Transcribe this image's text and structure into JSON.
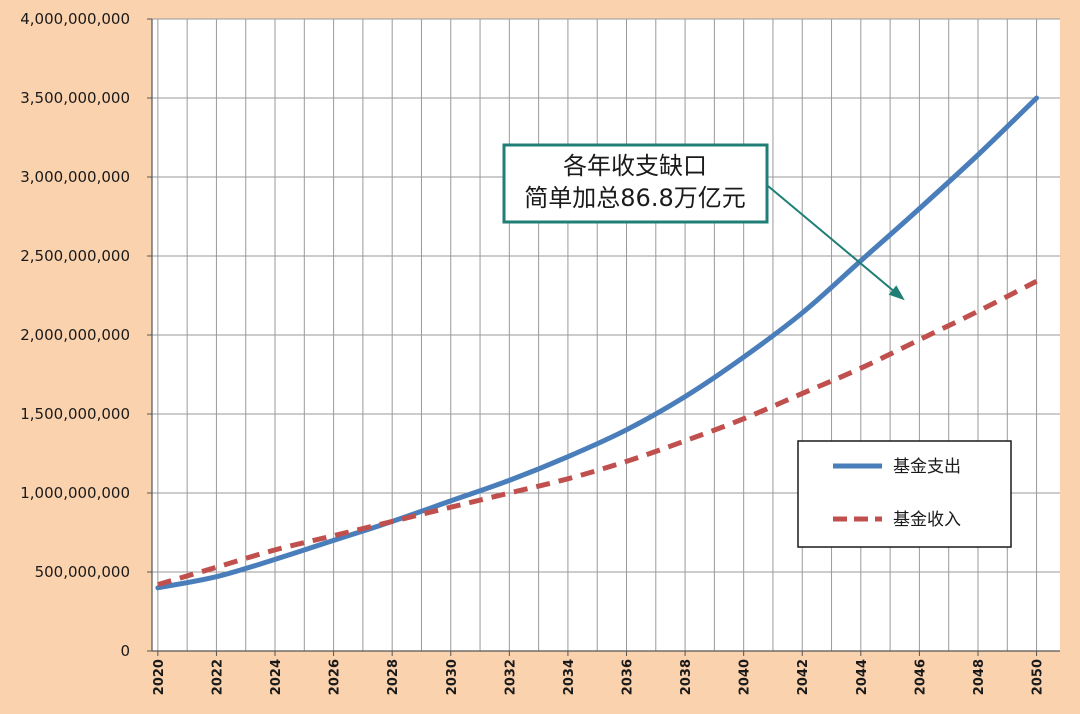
{
  "chart_data": {
    "type": "line",
    "title": "",
    "xlabel": "",
    "ylabel": "",
    "x": [
      2020,
      2022,
      2024,
      2026,
      2028,
      2030,
      2032,
      2034,
      2036,
      2038,
      2040,
      2042,
      2044,
      2046,
      2048,
      2050
    ],
    "xlim": [
      2019.8,
      2050.8
    ],
    "ylim": [
      0,
      4000000000
    ],
    "y_ticks": [
      0,
      500000000,
      1000000000,
      1500000000,
      2000000000,
      2500000000,
      3000000000,
      3500000000,
      4000000000
    ],
    "y_tick_labels": [
      "0",
      "500,000,000",
      "1,000,000,000",
      "1,500,000,000",
      "2,000,000,000",
      "2,500,000,000",
      "3,000,000,000",
      "3,500,000,000",
      "4,000,000,000"
    ],
    "x_tick_labels": [
      "2020",
      "2022",
      "2024",
      "2026",
      "2028",
      "2030",
      "2032",
      "2034",
      "2036",
      "2038",
      "2040",
      "2042",
      "2044",
      "2046",
      "2048",
      "2050"
    ],
    "grid": true,
    "legend_position": "right",
    "series": [
      {
        "name": "基金支出",
        "color": "#4a7ebb",
        "style": "solid",
        "values": [
          400000000,
          470000000,
          580000000,
          700000000,
          820000000,
          950000000,
          1080000000,
          1230000000,
          1400000000,
          1610000000,
          1860000000,
          2140000000,
          2470000000,
          2800000000,
          3140000000,
          3500000000
        ]
      },
      {
        "name": "基金收入",
        "color": "#c0504d",
        "style": "dashed",
        "values": [
          420000000,
          530000000,
          640000000,
          730000000,
          820000000,
          910000000,
          1000000000,
          1090000000,
          1200000000,
          1330000000,
          1470000000,
          1630000000,
          1790000000,
          1970000000,
          2150000000,
          2340000000
        ]
      }
    ],
    "annotation": {
      "line1": "各年收支缺口",
      "line2": "简单加总86.8万亿元",
      "border_color": "#1f7f76",
      "arrow_tip_x": 2045.5,
      "arrow_tip_y": 2220000000
    }
  }
}
